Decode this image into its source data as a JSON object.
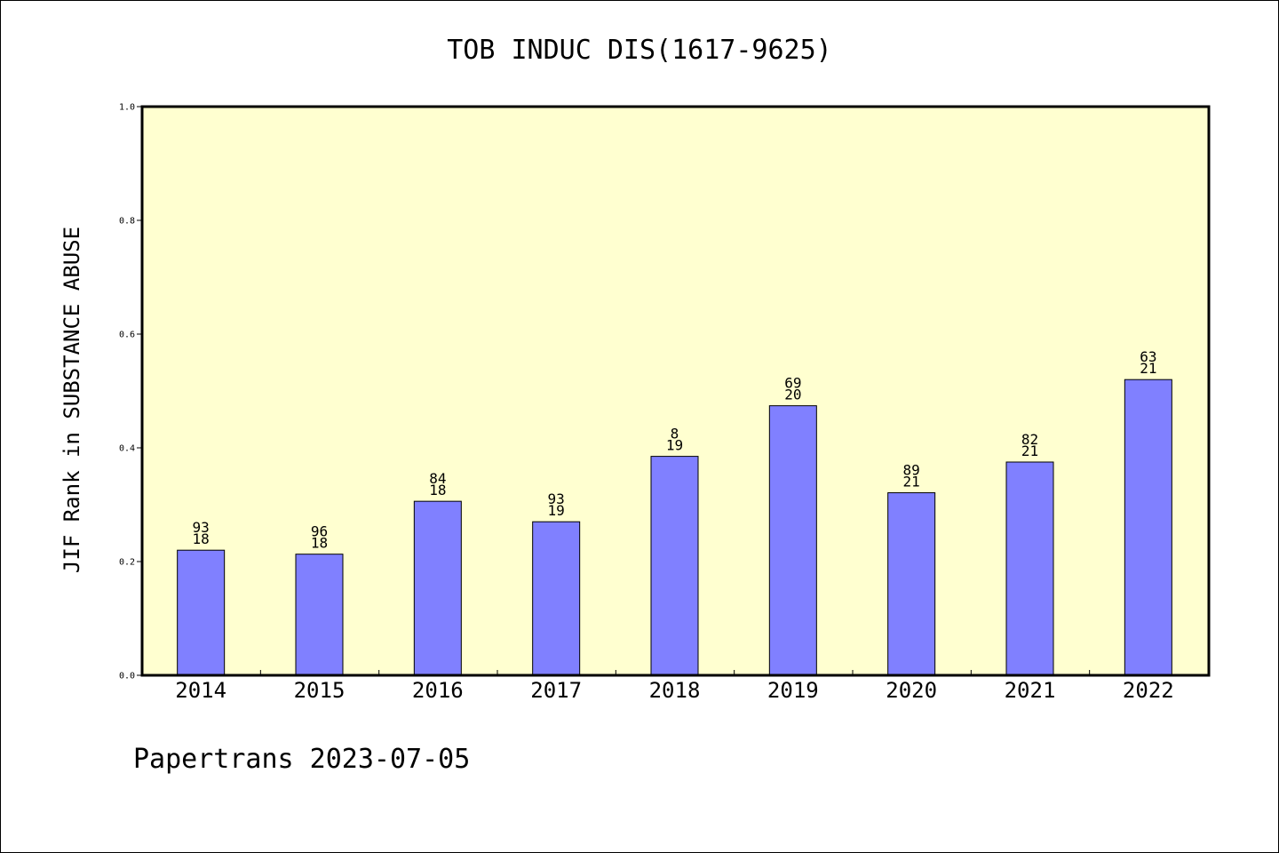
{
  "chart_data": {
    "type": "bar",
    "title": "TOB INDUC DIS(1617-9625)",
    "xlabel": "",
    "ylabel": "JIF Rank in SUBSTANCE ABUSE",
    "ylim": [
      0,
      1.0
    ],
    "yticks": [
      "0.0",
      "0.2",
      "0.4",
      "0.6",
      "0.8",
      "1.0"
    ],
    "categories": [
      "2014",
      "2015",
      "2016",
      "2017",
      "2018",
      "2019",
      "2020",
      "2021",
      "2022"
    ],
    "values": [
      0.22,
      0.213,
      0.306,
      0.27,
      0.385,
      0.474,
      0.321,
      0.375,
      0.52
    ],
    "labels_top": [
      "93",
      "96",
      "84",
      "93",
      "8",
      "69",
      "89",
      "82",
      "63"
    ],
    "labels_bottom": [
      "18",
      "18",
      "18",
      "19",
      "19",
      "20",
      "21",
      "21",
      "21"
    ],
    "plot_background": "#ffffd0",
    "bar_color": "#8080ff",
    "grid": false
  },
  "footer": "Papertrans 2023-07-05"
}
